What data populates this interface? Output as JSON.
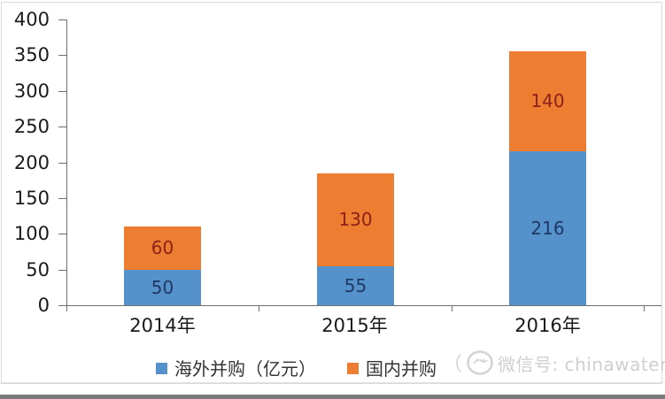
{
  "chart_data": {
    "type": "bar",
    "stacked": true,
    "title": "",
    "xlabel": "",
    "ylabel": "",
    "categories": [
      "2014年",
      "2015年",
      "2016年"
    ],
    "series": [
      {
        "name": "海外并购（亿元）",
        "color": "#5592CC",
        "label_color": "#1F3864",
        "values": [
          50,
          55,
          216
        ]
      },
      {
        "name": "国内并购",
        "color": "#ED7D31",
        "label_color": "#8C201A",
        "values": [
          60,
          130,
          140
        ]
      }
    ],
    "totals": [
      110,
      185,
      356
    ],
    "ylim": [
      0,
      400
    ],
    "yticks": [
      0,
      50,
      100,
      150,
      200,
      250,
      300,
      350,
      400
    ],
    "grid": false,
    "legend_position": "bottom"
  },
  "watermark": {
    "prefix": "（",
    "icon": "wechat-logo-icon",
    "text": "微信号: chinawaternet"
  }
}
